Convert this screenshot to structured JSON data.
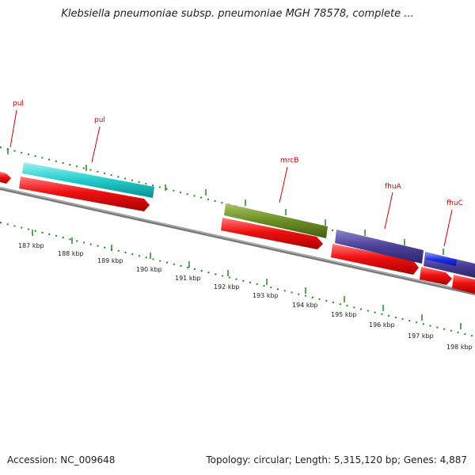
{
  "title": "Klebsiella pneumoniae subsp. pneumoniae MGH 78578, complete ...",
  "footer": {
    "accession": "Accession: NC_009648",
    "summary": "Topology: circular; Length: 5,315,120 bp; Genes: 4,887"
  },
  "colors": {
    "background": "#ffffff",
    "backbone": "#7a7a7a",
    "gene_red": "#ee1111",
    "gene_cyan": "#22cccc",
    "gene_olive": "#6b8e23",
    "gene_slate": "#4b3f99",
    "gene_blue": "#1a2eea",
    "label_red": "#d00000",
    "tick_green": "#1f8a1f"
  },
  "axis_labels": [
    "187 kbp",
    "188 kbp",
    "189 kbp",
    "190 kbp",
    "191 kbp",
    "192 kbp",
    "193 kbp",
    "194 kbp",
    "195 kbp",
    "196 kbp",
    "197 kbp",
    "198 kbp"
  ],
  "gene_labels": [
    "pul",
    "pul",
    "mrcB",
    "fhuA",
    "fhuC"
  ]
}
